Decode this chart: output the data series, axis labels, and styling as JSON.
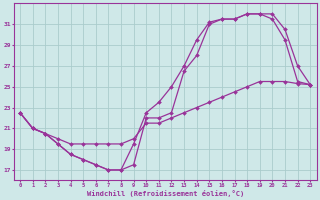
{
  "xlabel": "Windchill (Refroidissement éolien,°C)",
  "background_color": "#cfe8e8",
  "grid_color": "#aacccc",
  "line_color": "#993399",
  "xlim": [
    -0.5,
    23.5
  ],
  "ylim": [
    16.0,
    33.0
  ],
  "yticks": [
    17,
    19,
    21,
    23,
    25,
    27,
    29,
    31
  ],
  "xticks": [
    0,
    1,
    2,
    3,
    4,
    5,
    6,
    7,
    8,
    9,
    10,
    11,
    12,
    13,
    14,
    15,
    16,
    17,
    18,
    19,
    20,
    21,
    22,
    23
  ],
  "line1_x": [
    0,
    1,
    2,
    3,
    4,
    5,
    6,
    7,
    8,
    9,
    10,
    11,
    12,
    13,
    14,
    15,
    16,
    17,
    18,
    19,
    20,
    21,
    22,
    23
  ],
  "line1_y": [
    22.5,
    21.0,
    20.5,
    20.0,
    19.5,
    19.5,
    19.5,
    19.5,
    19.5,
    20.0,
    21.5,
    21.5,
    22.0,
    22.5,
    23.0,
    23.5,
    24.0,
    24.5,
    25.0,
    25.5,
    25.5,
    25.5,
    25.3,
    25.2
  ],
  "line2_x": [
    0,
    1,
    2,
    3,
    4,
    5,
    6,
    7,
    8,
    9,
    10,
    11,
    12,
    13,
    14,
    15,
    16,
    17,
    18,
    19,
    20,
    21,
    22,
    23
  ],
  "line2_y": [
    22.5,
    21.0,
    20.5,
    19.5,
    18.5,
    18.0,
    17.5,
    17.0,
    17.0,
    19.5,
    22.5,
    23.5,
    25.0,
    27.0,
    29.5,
    31.2,
    31.5,
    31.5,
    32.0,
    32.0,
    32.0,
    30.5,
    27.0,
    25.2
  ],
  "line3_x": [
    0,
    1,
    2,
    3,
    4,
    5,
    6,
    7,
    8,
    9,
    10,
    11,
    12,
    13,
    14,
    15,
    16,
    17,
    18,
    19,
    20,
    21,
    22,
    23
  ],
  "line3_y": [
    22.5,
    21.0,
    20.5,
    19.5,
    18.5,
    18.0,
    17.5,
    17.0,
    17.0,
    17.5,
    22.0,
    22.0,
    22.5,
    26.5,
    28.0,
    31.0,
    31.5,
    31.5,
    32.0,
    32.0,
    31.5,
    29.5,
    25.5,
    25.2
  ]
}
